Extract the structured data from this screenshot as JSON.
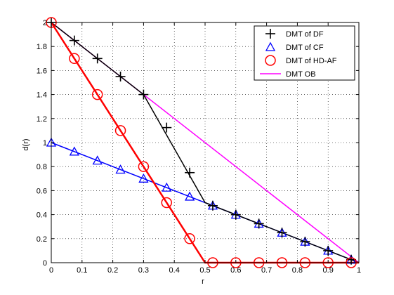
{
  "chart_data": {
    "type": "line",
    "xlabel": "r",
    "ylabel": "d(r)",
    "xlim": [
      0,
      1
    ],
    "ylim": [
      0,
      2
    ],
    "xticks": [
      "0",
      "0.1",
      "0.2",
      "0.3",
      "0.4",
      "0.5",
      "0.6",
      "0.7",
      "0.8",
      "0.9",
      "1"
    ],
    "yticks": [
      "0",
      "0.2",
      "0.4",
      "0.6",
      "0.8",
      "1",
      "1.2",
      "1.4",
      "1.6",
      "1.8",
      "2"
    ],
    "grid": true,
    "legend_position": "top-right",
    "series": [
      {
        "name": "DMT of DF",
        "color": "#000000",
        "marker": "plus",
        "line": [
          [
            0,
            2
          ],
          [
            0.3,
            1.4
          ],
          [
            0.5,
            0.5
          ],
          [
            1,
            0
          ]
        ],
        "points": [
          [
            0,
            2
          ],
          [
            0.075,
            1.85
          ],
          [
            0.15,
            1.7
          ],
          [
            0.225,
            1.55
          ],
          [
            0.3,
            1.4
          ],
          [
            0.375,
            1.125
          ],
          [
            0.45,
            0.75
          ],
          [
            0.525,
            0.475
          ],
          [
            0.6,
            0.4
          ],
          [
            0.675,
            0.325
          ],
          [
            0.75,
            0.25
          ],
          [
            0.825,
            0.175
          ],
          [
            0.9,
            0.1
          ],
          [
            0.975,
            0.025
          ]
        ]
      },
      {
        "name": "DMT of CF",
        "color": "#0000ff",
        "marker": "triangle",
        "line": [
          [
            0,
            1
          ],
          [
            1,
            0
          ]
        ],
        "points": [
          [
            0,
            1
          ],
          [
            0.075,
            0.925
          ],
          [
            0.15,
            0.85
          ],
          [
            0.225,
            0.775
          ],
          [
            0.3,
            0.7
          ],
          [
            0.375,
            0.625
          ],
          [
            0.45,
            0.55
          ],
          [
            0.525,
            0.475
          ],
          [
            0.6,
            0.4
          ],
          [
            0.675,
            0.325
          ],
          [
            0.75,
            0.25
          ],
          [
            0.825,
            0.175
          ],
          [
            0.9,
            0.1
          ],
          [
            0.975,
            0.025
          ]
        ]
      },
      {
        "name": "DMT of HD-AF",
        "color": "#ff0000",
        "marker": "circle",
        "line": [
          [
            0,
            2
          ],
          [
            0.5,
            0
          ],
          [
            1,
            0
          ]
        ],
        "points": [
          [
            0,
            2
          ],
          [
            0.075,
            1.7
          ],
          [
            0.15,
            1.4
          ],
          [
            0.225,
            1.1
          ],
          [
            0.3,
            0.8
          ],
          [
            0.375,
            0.5
          ],
          [
            0.45,
            0.2
          ],
          [
            0.525,
            0
          ],
          [
            0.6,
            0
          ],
          [
            0.675,
            0
          ],
          [
            0.75,
            0
          ],
          [
            0.825,
            0
          ],
          [
            0.9,
            0
          ],
          [
            0.975,
            0
          ]
        ]
      },
      {
        "name": "DMT OB",
        "color": "#ff00ff",
        "marker": "none",
        "line": [
          [
            0,
            2
          ],
          [
            1,
            0
          ]
        ],
        "points": []
      }
    ]
  }
}
